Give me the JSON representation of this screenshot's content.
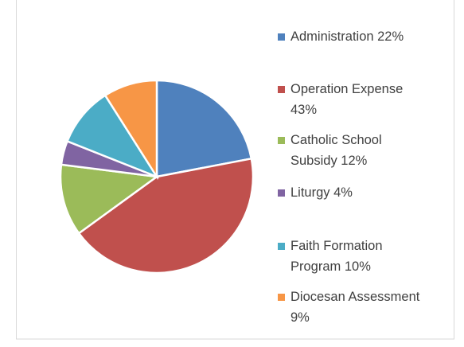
{
  "chart_data": {
    "type": "pie",
    "categories": [
      "Administration 22%",
      "Operation Expense 43%",
      "Catholic School Subsidy 12%",
      "Liturgy 4%",
      "Faith Formation Program 10%",
      "Diocesan Assessment  9%"
    ],
    "values": [
      22,
      43,
      12,
      4,
      10,
      9
    ],
    "colors": [
      "#4f81bd",
      "#c0504d",
      "#9bbb59",
      "#8064a2",
      "#4bacc6",
      "#f79646"
    ],
    "legend": "right"
  }
}
